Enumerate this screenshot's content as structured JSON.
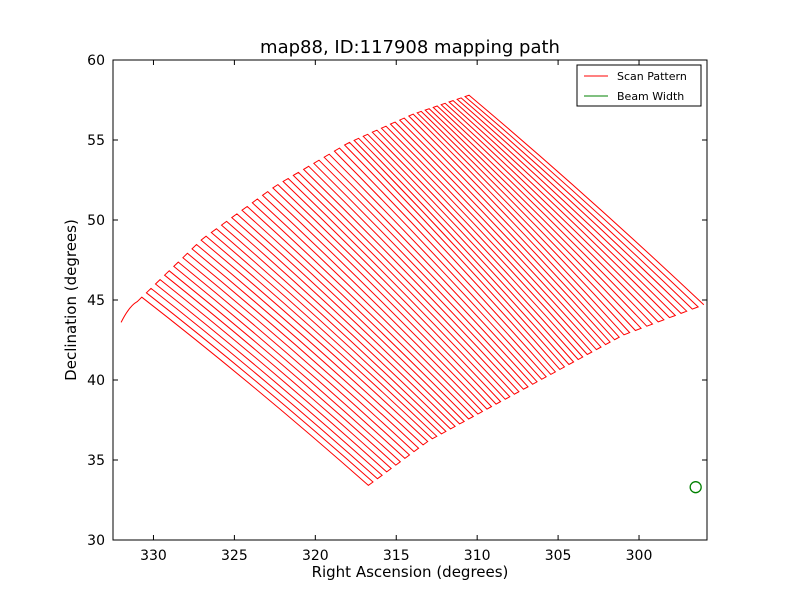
{
  "chart_data": {
    "type": "line",
    "title": "map88, ID:117908 mapping path",
    "xlabel": "Right Ascension (degrees)",
    "ylabel": "Declination (degrees)",
    "xlim": [
      332.5,
      295.8
    ],
    "ylim": [
      30,
      60
    ],
    "x_inverted": true,
    "xticks": [
      330,
      325,
      320,
      315,
      310,
      305,
      300
    ],
    "xtick_labels": [
      "330",
      "325",
      "320",
      "315",
      "310",
      "305",
      "300"
    ],
    "yticks": [
      30,
      35,
      40,
      45,
      50,
      55,
      60
    ],
    "ytick_labels": [
      "30",
      "35",
      "40",
      "45",
      "50",
      "55",
      "60"
    ],
    "grid": false,
    "legend_position": "top-right",
    "series": [
      {
        "name": "Scan Pattern",
        "color": "#ff0000",
        "kind": "boustrophedon scan lines",
        "n_lines": 72,
        "start_line": {
          "from": [
            332.0,
            43.6
          ],
          "to": [
            331.0,
            44.9
          ]
        },
        "start_edge_curve": [
          [
            331.0,
            44.9
          ],
          [
            327.0,
            48.8
          ],
          [
            322.5,
            52.1
          ],
          [
            318.0,
            54.8
          ],
          [
            314.0,
            56.6
          ],
          [
            310.5,
            57.8
          ]
        ],
        "end_edge_curve": [
          [
            317.0,
            33.2
          ],
          [
            313.0,
            36.2
          ],
          [
            309.0,
            38.4
          ],
          [
            305.0,
            40.6
          ],
          [
            301.0,
            42.8
          ],
          [
            296.0,
            44.7
          ]
        ],
        "end_line": {
          "from": [
            317.0,
            33.2
          ],
          "to": [
            296.0,
            44.7
          ]
        }
      },
      {
        "name": "Beam Width",
        "color": "#008000",
        "kind": "circle",
        "center": [
          296.5,
          33.3
        ]
      }
    ]
  }
}
